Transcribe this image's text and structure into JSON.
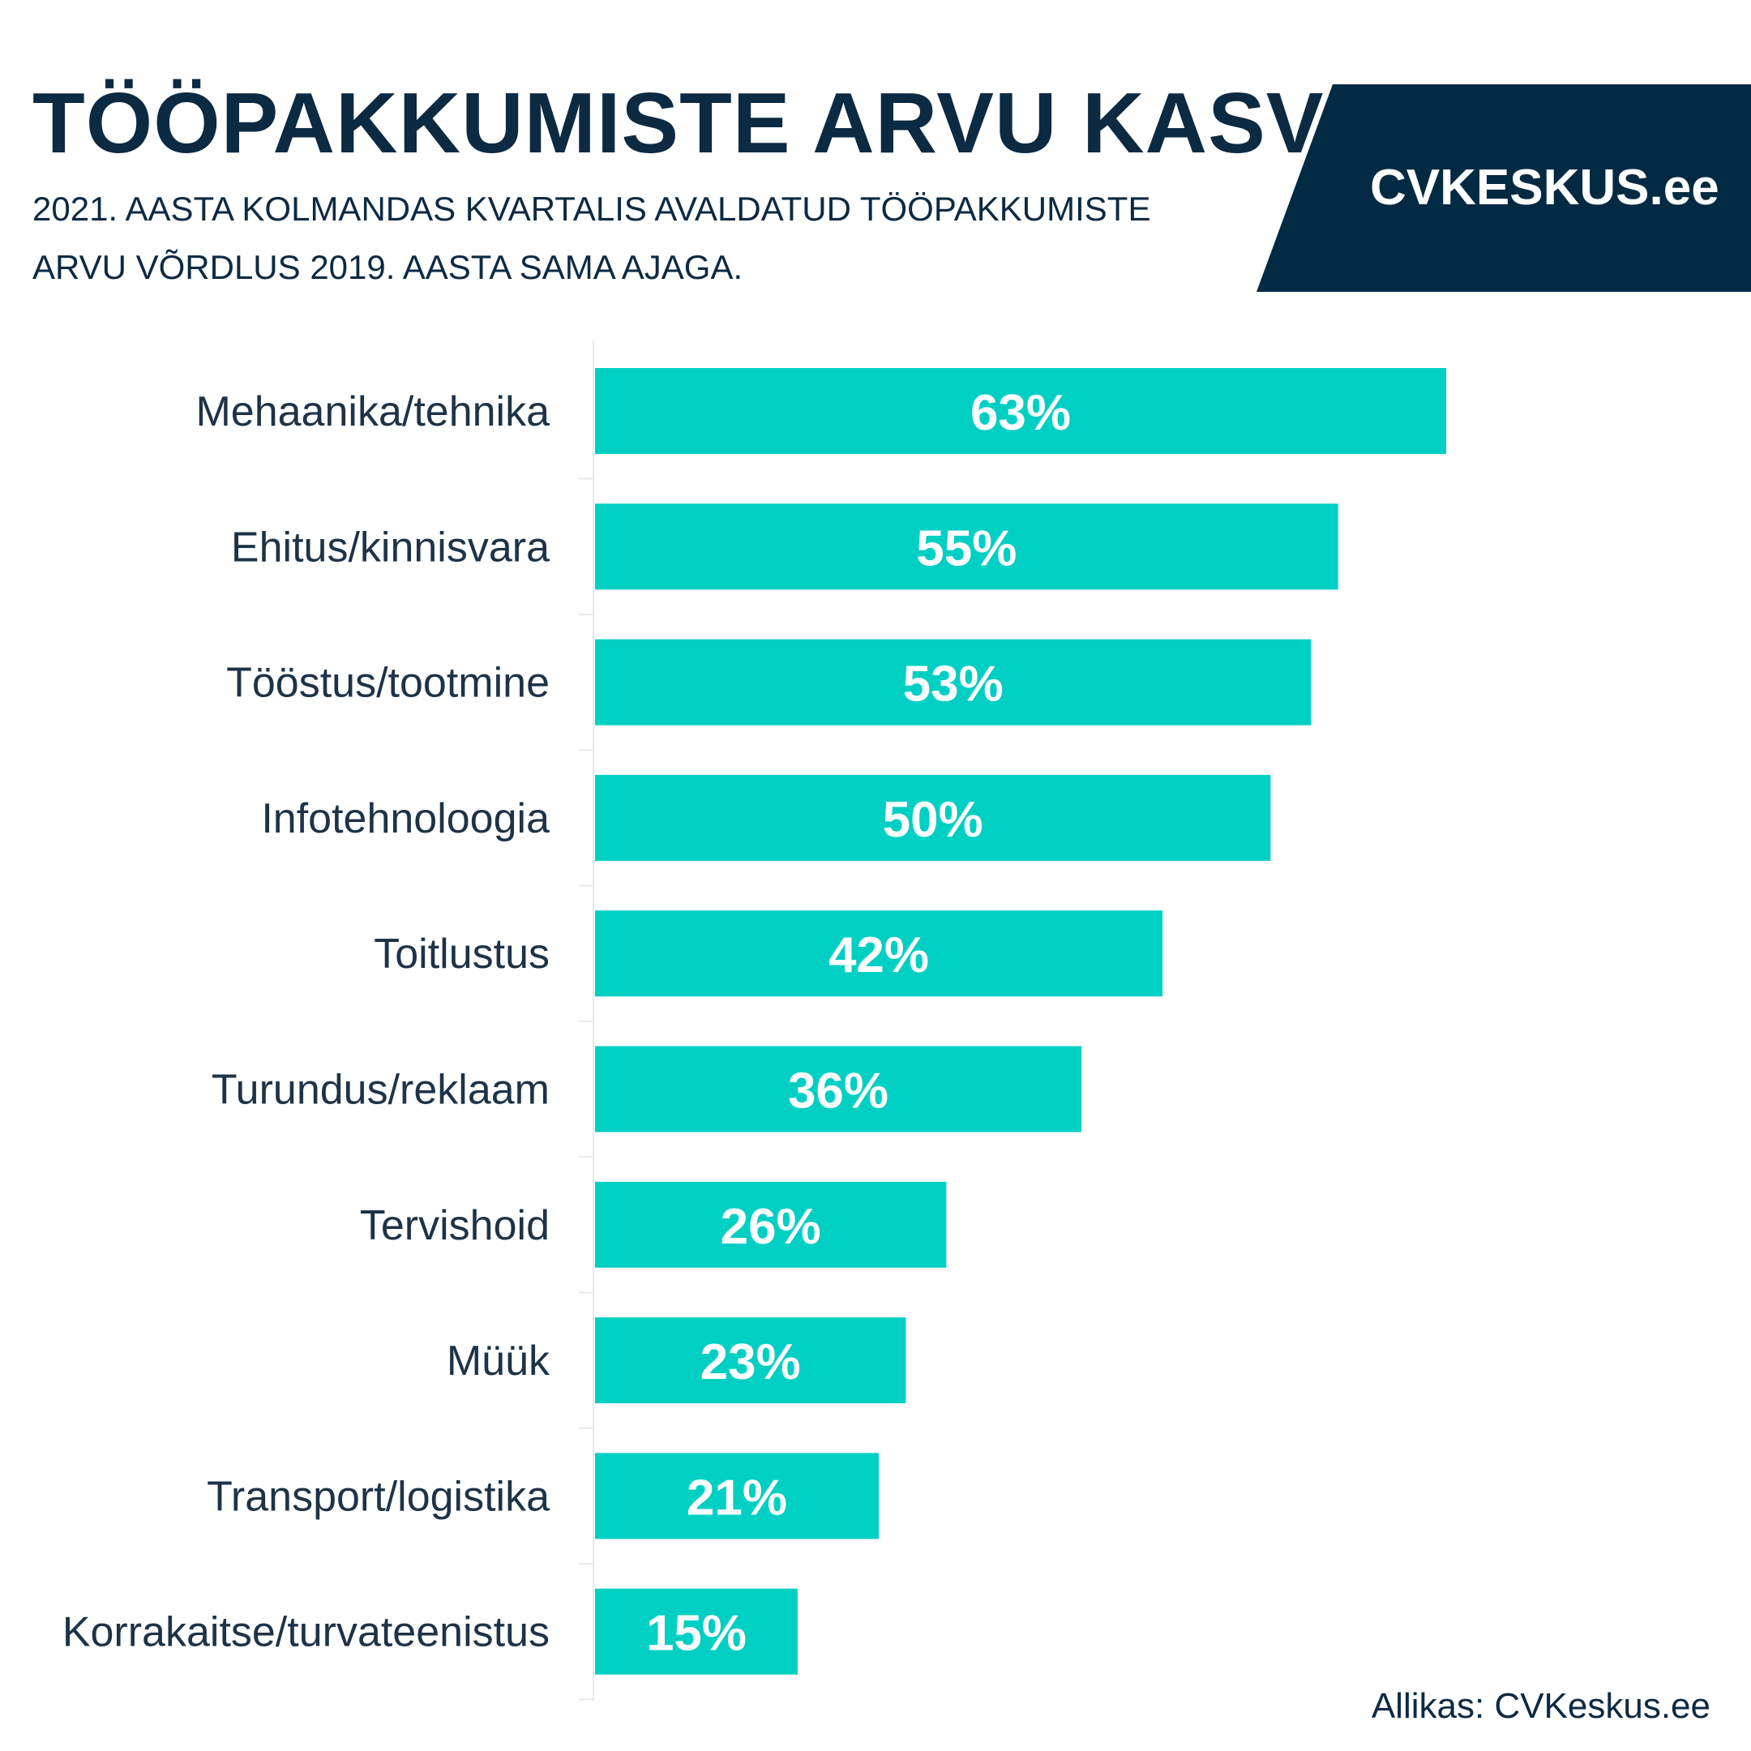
{
  "header": {
    "title": "TÖÖPAKKUMISTE ARVU KASV",
    "subtitle": "2021. AASTA KOLMANDAS KVARTALIS AVALDATUD TÖÖPAKKUMISTE ARVU VÕRDLUS 2019. AASTA SAMA AJAGA."
  },
  "logo": {
    "text": "CVKESKUS.ee",
    "background": "#022a42"
  },
  "footer": {
    "source": "Allikas: CVKeskus.ee"
  },
  "colors": {
    "bar": "#00cfc4",
    "label": "#1d3347",
    "value_label": "#ffffff"
  },
  "chart_data": {
    "type": "bar",
    "orientation": "horizontal",
    "title": "TÖÖPAKKUMISTE ARVU KASV",
    "subtitle": "2021. AASTA KOLMANDAS KVARTALIS AVALDATUD TÖÖPAKKUMISTE ARVU VÕRDLUS 2019. AASTA SAMA AJAGA.",
    "categories": [
      "Mehaanika/tehnika",
      "Ehitus/kinnisvara",
      "Tööstus/tootmine",
      "Infotehnoloogia",
      "Toitlustus",
      "Turundus/reklaam",
      "Tervishoid",
      "Müük",
      "Transport/logistika",
      "Korrakaitse/turvateenistus"
    ],
    "values": [
      63,
      55,
      53,
      50,
      42,
      36,
      26,
      23,
      21,
      15
    ],
    "value_labels": [
      "63%",
      "55%",
      "53%",
      "50%",
      "42%",
      "36%",
      "26%",
      "23%",
      "21%",
      "15%"
    ],
    "unit": "%",
    "xlim": [
      0,
      63
    ],
    "grid": false,
    "legend": "none"
  }
}
